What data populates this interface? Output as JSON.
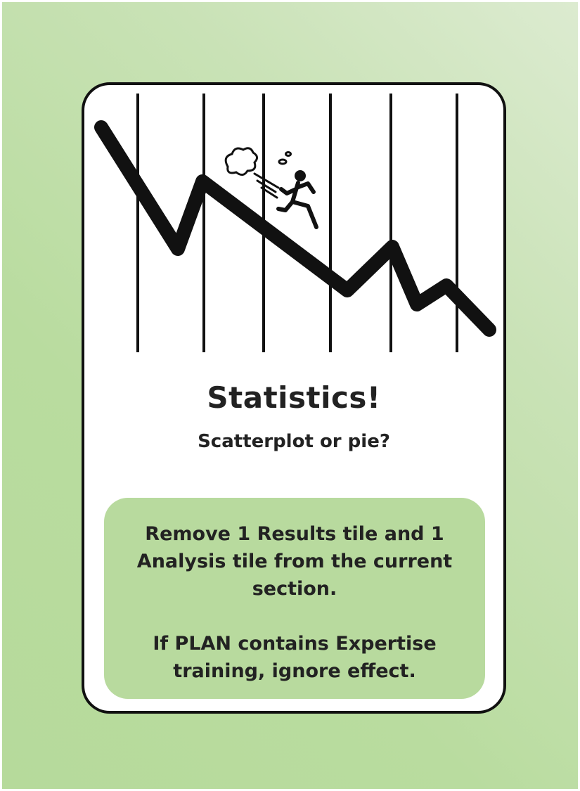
{
  "card": {
    "title": "Statistics!",
    "subtitle": "Scatterplot or pie?",
    "effect": {
      "text": "Remove 1 Results tile and 1 Analysis tile from the current section.",
      "exception": "If PLAN contains Expertise training,  ignore effect."
    }
  },
  "colors": {
    "background": "#b9dc9f",
    "card_background": "#ffffff",
    "card_border": "#111111",
    "effect_box": "#b8da9e",
    "text": "#222222"
  },
  "illustration": {
    "icons": [
      "falling-line-graph",
      "running-person-icon",
      "dust-cloud-icon"
    ]
  }
}
